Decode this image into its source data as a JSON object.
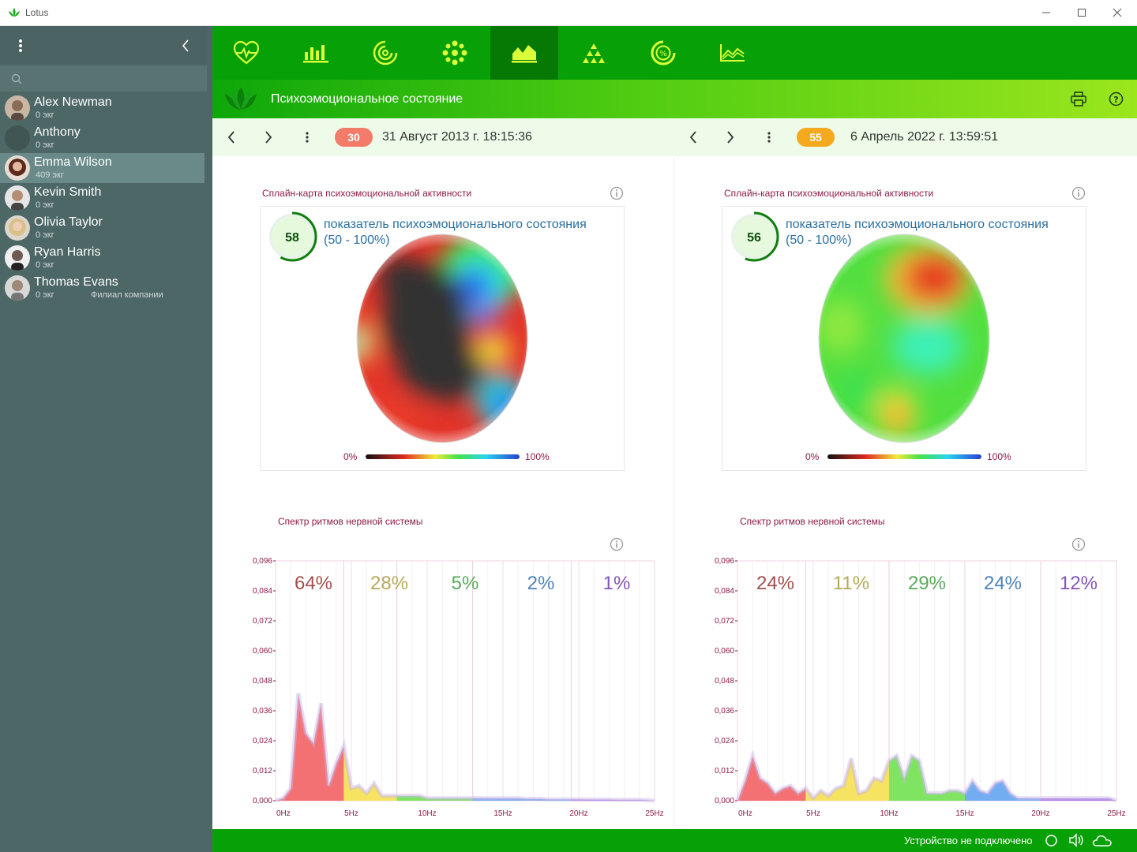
{
  "window": {
    "title": "Lotus"
  },
  "sidebar": {
    "search_placeholder": "",
    "contacts": [
      {
        "name": "Alex Newman",
        "sub": "0 экг",
        "extra": ""
      },
      {
        "name": "Anthony",
        "sub": "0 экг",
        "extra": ""
      },
      {
        "name": "Emma Wilson",
        "sub": "409 экг",
        "extra": ""
      },
      {
        "name": "Kevin Smith",
        "sub": "0 экг",
        "extra": ""
      },
      {
        "name": "Olivia Taylor",
        "sub": "0 экг",
        "extra": ""
      },
      {
        "name": "Ryan Harris",
        "sub": "0 экг",
        "extra": ""
      },
      {
        "name": "Thomas Evans",
        "sub": "0 экг",
        "extra": "Филиал компании"
      }
    ],
    "selected_index": 2
  },
  "toolbar": {
    "tools": [
      "heart-pulse-icon",
      "bar-chart-icon",
      "spiral-icon",
      "flower-icon",
      "area-chart-icon",
      "pyramid-icon",
      "percent-ring-icon",
      "line-chart-icon"
    ],
    "active_index": 4
  },
  "header": {
    "title": "Психоэмоциональное состояние"
  },
  "colors": {
    "accent": "#08a007",
    "active_tool": "#067905",
    "badge_left": "#f47a6a",
    "badge_right": "#f5a91c",
    "caption": "#8b1a4a"
  },
  "left": {
    "badge": "30",
    "date": "31 Август 2013 г. 18:15:36",
    "map_caption": "Сплайн-карта психоэмоциональной активности",
    "indicator_value": "58",
    "indicator_fraction": 0.58,
    "indicator_label": "показатель психоэмоционального состояния",
    "indicator_range": "(50 - 100%)",
    "scale_min": "0%",
    "scale_max": "100%",
    "spectrum_caption": "Спектр ритмов нервной системы",
    "percentages": [
      "64%",
      "28%",
      "5%",
      "2%",
      "1%"
    ]
  },
  "right": {
    "badge": "55",
    "date": "6 Апрель 2022 г. 13:59:51",
    "map_caption": "Сплайн-карта психоэмоциональной активности",
    "indicator_value": "56",
    "indicator_fraction": 0.56,
    "indicator_label": "показатель психоэмоционального состояния",
    "indicator_range": "(50 - 100%)",
    "scale_min": "0%",
    "scale_max": "100%",
    "spectrum_caption": "Спектр ритмов нервной системы",
    "percentages": [
      "24%",
      "11%",
      "29%",
      "24%",
      "12%"
    ]
  },
  "chart_data": [
    {
      "type": "area",
      "title": "Спектр ритмов нервной системы",
      "x_ticks": [
        "0Hz",
        "5Hz",
        "10Hz",
        "15Hz",
        "20Hz",
        "25Hz"
      ],
      "y_ticks": [
        "0,096",
        "0,084",
        "0,072",
        "0,060",
        "0,048",
        "0,036",
        "0,024",
        "0,012",
        "0,000"
      ],
      "xlim": [
        0,
        25
      ],
      "ylim": [
        0,
        0.096
      ],
      "band_colors": [
        "#f2686b",
        "#f6e25a",
        "#79e35b",
        "#6aa9f0",
        "#a673e9"
      ],
      "band_text_colors": [
        "#a24f4b",
        "#b6a85b",
        "#5aa95c",
        "#4f83b9",
        "#8456b6"
      ],
      "bands": [
        [
          0,
          4.5
        ],
        [
          4.5,
          8
        ],
        [
          8,
          13
        ],
        [
          13,
          19.5
        ],
        [
          19.5,
          25
        ]
      ],
      "x": [
        0,
        0.5,
        1,
        1.5,
        2,
        2.5,
        3,
        3.5,
        4,
        4.5,
        5,
        5.5,
        6,
        6.5,
        7,
        7.5,
        8,
        8.5,
        9,
        9.5,
        10,
        10.5,
        11,
        11.5,
        12,
        12.5,
        13,
        13.5,
        14,
        14.5,
        15,
        15.5,
        16,
        16.5,
        17,
        17.5,
        18,
        18.5,
        19,
        19.5,
        20,
        20.5,
        21,
        21.5,
        22,
        22.5,
        23,
        23.5,
        24,
        24.5,
        25
      ],
      "values": [
        0,
        0.001,
        0.005,
        0.043,
        0.027,
        0.023,
        0.039,
        0.006,
        0.015,
        0.022,
        0.005,
        0.006,
        0.003,
        0.007,
        0.002,
        0.002,
        0.002,
        0.002,
        0.002,
        0.002,
        0.001,
        0.001,
        0.001,
        0.001,
        0.001,
        0.001,
        0.001,
        0.001,
        0.001,
        0.001,
        0.001,
        0.001,
        0.001,
        0.0008,
        0.0008,
        0.0008,
        0.0006,
        0.0006,
        0.0006,
        0.0006,
        0.0006,
        0.0005,
        0.0005,
        0.0005,
        0.0005,
        0.0004,
        0.0004,
        0.0004,
        0.0004,
        0.0003,
        0
      ]
    },
    {
      "type": "area",
      "title": "Спектр ритмов нервной системы",
      "x_ticks": [
        "0Hz",
        "5Hz",
        "10Hz",
        "15Hz",
        "20Hz",
        "25Hz"
      ],
      "y_ticks": [
        "0,096",
        "0,084",
        "0,072",
        "0,060",
        "0,048",
        "0,036",
        "0,024",
        "0,012",
        "0,000"
      ],
      "xlim": [
        0,
        25
      ],
      "ylim": [
        0,
        0.096
      ],
      "band_colors": [
        "#f2686b",
        "#f6e25a",
        "#79e35b",
        "#6aa9f0",
        "#a673e9"
      ],
      "band_text_colors": [
        "#a24f4b",
        "#b6a85b",
        "#5aa95c",
        "#4f83b9",
        "#8456b6"
      ],
      "bands": [
        [
          0,
          4.5
        ],
        [
          4.5,
          10
        ],
        [
          10,
          15
        ],
        [
          15,
          20
        ],
        [
          20,
          25
        ]
      ],
      "x": [
        0,
        0.5,
        1,
        1.5,
        2,
        2.5,
        3,
        3.5,
        4,
        4.5,
        5,
        5.5,
        6,
        6.5,
        7,
        7.5,
        8,
        8.5,
        9,
        9.5,
        10,
        10.5,
        11,
        11.5,
        12,
        12.5,
        13,
        13.5,
        14,
        14.5,
        15,
        15.5,
        16,
        16.5,
        17,
        17.5,
        18,
        18.5,
        19,
        19.5,
        20,
        20.5,
        21,
        21.5,
        22,
        22.5,
        23,
        23.5,
        24,
        24.5,
        25
      ],
      "values": [
        0,
        0.008,
        0.018,
        0.009,
        0.007,
        0.003,
        0.005,
        0.006,
        0.003,
        0.005,
        0.001,
        0.004,
        0.002,
        0.005,
        0.006,
        0.017,
        0.003,
        0.004,
        0.009,
        0.008,
        0.016,
        0.018,
        0.009,
        0.018,
        0.016,
        0.003,
        0.003,
        0.003,
        0.004,
        0.004,
        0.003,
        0.008,
        0.004,
        0.003,
        0.007,
        0.008,
        0.003,
        0.001,
        0.001,
        0.001,
        0.001,
        0.001,
        0.001,
        0.001,
        0.001,
        0.001,
        0.001,
        0.001,
        0.001,
        0.001,
        0
      ]
    }
  ],
  "status": {
    "text": "Устройство не подключено"
  }
}
